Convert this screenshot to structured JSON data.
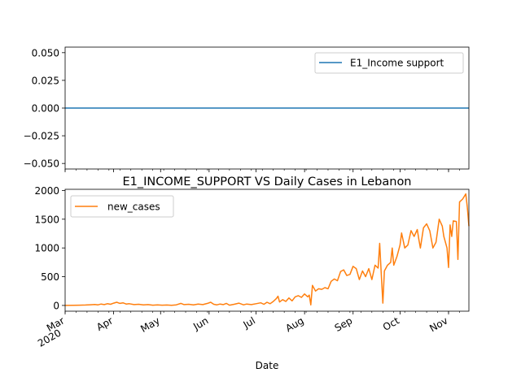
{
  "chart_data": [
    {
      "type": "line",
      "title": "",
      "xlabel": "",
      "ylabel": "",
      "ylim": [
        -0.055,
        0.055
      ],
      "yticks": [
        "0.050",
        "0.025",
        "0.000",
        "−0.025",
        "−0.050"
      ],
      "ytick_values": [
        0.05,
        0.025,
        0.0,
        -0.025,
        -0.05
      ],
      "legend_position": "top-right",
      "series": [
        {
          "name": "E1_Income support",
          "color": "#1f77b4",
          "x": [
            "2020-03-01",
            "2020-11-01"
          ],
          "values": [
            0,
            0
          ]
        }
      ]
    },
    {
      "type": "line",
      "title": "E1_INCOME_SUPPORT VS Daily Cases in Lebanon",
      "xlabel": "Date",
      "ylabel": "",
      "ylim": [
        -100,
        2020
      ],
      "yticks": [
        "0",
        "500",
        "1000",
        "1500",
        "2000"
      ],
      "ytick_values": [
        0,
        500,
        1000,
        1500,
        2000
      ],
      "xlim": [
        "2020-03-01",
        "2020-11-01"
      ],
      "xticks": [
        {
          "date": "2020-03-01",
          "label": "Mar",
          "sublabel": "2020"
        },
        {
          "date": "2020-04-01",
          "label": "Apr",
          "sublabel": ""
        },
        {
          "date": "2020-05-01",
          "label": "May",
          "sublabel": ""
        },
        {
          "date": "2020-06-01",
          "label": "Jun",
          "sublabel": ""
        },
        {
          "date": "2020-07-01",
          "label": "Jul",
          "sublabel": ""
        },
        {
          "date": "2020-08-01",
          "label": "Aug",
          "sublabel": ""
        },
        {
          "date": "2020-09-01",
          "label": "Sep",
          "sublabel": ""
        },
        {
          "date": "2020-10-01",
          "label": "Oct",
          "sublabel": ""
        },
        {
          "date": "2020-11-01",
          "label": "Nov",
          "sublabel": ""
        }
      ],
      "legend_position": "top-left",
      "series": [
        {
          "name": "new_cases",
          "color": "#ff7f0e",
          "points": [
            [
              "2020-03-01",
              0
            ],
            [
              "2020-03-06",
              2
            ],
            [
              "2020-03-10",
              5
            ],
            [
              "2020-03-14",
              8
            ],
            [
              "2020-03-17",
              12
            ],
            [
              "2020-03-20",
              18
            ],
            [
              "2020-03-22",
              10
            ],
            [
              "2020-03-24",
              25
            ],
            [
              "2020-03-26",
              15
            ],
            [
              "2020-03-28",
              30
            ],
            [
              "2020-03-30",
              20
            ],
            [
              "2020-04-01",
              40
            ],
            [
              "2020-04-03",
              55
            ],
            [
              "2020-04-05",
              35
            ],
            [
              "2020-04-07",
              45
            ],
            [
              "2020-04-09",
              25
            ],
            [
              "2020-04-11",
              30
            ],
            [
              "2020-04-14",
              15
            ],
            [
              "2020-04-17",
              20
            ],
            [
              "2020-04-20",
              10
            ],
            [
              "2020-04-23",
              15
            ],
            [
              "2020-04-26",
              5
            ],
            [
              "2020-04-29",
              10
            ],
            [
              "2020-05-02",
              5
            ],
            [
              "2020-05-05",
              8
            ],
            [
              "2020-05-08",
              3
            ],
            [
              "2020-05-11",
              10
            ],
            [
              "2020-05-14",
              35
            ],
            [
              "2020-05-16",
              15
            ],
            [
              "2020-05-19",
              20
            ],
            [
              "2020-05-22",
              10
            ],
            [
              "2020-05-25",
              25
            ],
            [
              "2020-05-28",
              15
            ],
            [
              "2020-05-31",
              35
            ],
            [
              "2020-06-02",
              55
            ],
            [
              "2020-06-04",
              20
            ],
            [
              "2020-06-06",
              10
            ],
            [
              "2020-06-08",
              25
            ],
            [
              "2020-06-10",
              15
            ],
            [
              "2020-06-12",
              35
            ],
            [
              "2020-06-14",
              5
            ],
            [
              "2020-06-17",
              20
            ],
            [
              "2020-06-20",
              40
            ],
            [
              "2020-06-23",
              10
            ],
            [
              "2020-06-25",
              25
            ],
            [
              "2020-06-28",
              15
            ],
            [
              "2020-07-01",
              30
            ],
            [
              "2020-07-04",
              45
            ],
            [
              "2020-07-06",
              20
            ],
            [
              "2020-07-08",
              55
            ],
            [
              "2020-07-10",
              30
            ],
            [
              "2020-07-12",
              70
            ],
            [
              "2020-07-14",
              120
            ],
            [
              "2020-07-15",
              160
            ],
            [
              "2020-07-16",
              60
            ],
            [
              "2020-07-18",
              100
            ],
            [
              "2020-07-20",
              70
            ],
            [
              "2020-07-22",
              130
            ],
            [
              "2020-07-24",
              80
            ],
            [
              "2020-07-26",
              150
            ],
            [
              "2020-07-28",
              170
            ],
            [
              "2020-07-30",
              140
            ],
            [
              "2020-08-01",
              200
            ],
            [
              "2020-08-03",
              150
            ],
            [
              "2020-08-04",
              180
            ],
            [
              "2020-08-05",
              10
            ],
            [
              "2020-08-06",
              350
            ],
            [
              "2020-08-08",
              250
            ],
            [
              "2020-08-10",
              290
            ],
            [
              "2020-08-12",
              280
            ],
            [
              "2020-08-14",
              310
            ],
            [
              "2020-08-16",
              290
            ],
            [
              "2020-08-18",
              420
            ],
            [
              "2020-08-20",
              460
            ],
            [
              "2020-08-22",
              430
            ],
            [
              "2020-08-24",
              590
            ],
            [
              "2020-08-26",
              620
            ],
            [
              "2020-08-28",
              520
            ],
            [
              "2020-08-30",
              540
            ],
            [
              "2020-09-01",
              680
            ],
            [
              "2020-09-03",
              640
            ],
            [
              "2020-09-05",
              450
            ],
            [
              "2020-09-07",
              600
            ],
            [
              "2020-09-09",
              500
            ],
            [
              "2020-09-11",
              640
            ],
            [
              "2020-09-13",
              450
            ],
            [
              "2020-09-15",
              700
            ],
            [
              "2020-09-17",
              650
            ],
            [
              "2020-09-18",
              1080
            ],
            [
              "2020-09-19",
              560
            ],
            [
              "2020-09-20",
              40
            ],
            [
              "2020-09-21",
              600
            ],
            [
              "2020-09-23",
              700
            ],
            [
              "2020-09-25",
              750
            ],
            [
              "2020-09-26",
              1000
            ],
            [
              "2020-09-27",
              700
            ],
            [
              "2020-09-29",
              850
            ],
            [
              "2020-10-01",
              1050
            ],
            [
              "2020-10-02",
              1260
            ],
            [
              "2020-10-04",
              1000
            ],
            [
              "2020-10-06",
              1050
            ],
            [
              "2020-10-08",
              1300
            ],
            [
              "2020-10-10",
              1200
            ],
            [
              "2020-10-12",
              1320
            ],
            [
              "2020-10-13",
              1150
            ],
            [
              "2020-10-14",
              1000
            ],
            [
              "2020-10-16",
              1350
            ],
            [
              "2020-10-18",
              1420
            ],
            [
              "2020-10-20",
              1300
            ],
            [
              "2020-10-22",
              1000
            ],
            [
              "2020-10-24",
              1100
            ],
            [
              "2020-10-26",
              1500
            ],
            [
              "2020-10-28",
              1380
            ],
            [
              "2020-10-29",
              1200
            ],
            [
              "2020-10-31",
              1000
            ],
            [
              "2020-11-01",
              660
            ],
            [
              "2020-11-02",
              1400
            ],
            [
              "2020-11-03",
              1200
            ],
            [
              "2020-11-04",
              1470
            ],
            [
              "2020-11-06",
              1460
            ],
            [
              "2020-11-07",
              800
            ],
            [
              "2020-11-08",
              1800
            ],
            [
              "2020-11-10",
              1850
            ],
            [
              "2020-11-12",
              1940
            ],
            [
              "2020-11-13",
              1700
            ],
            [
              "2020-11-14",
              1380
            ]
          ]
        }
      ]
    }
  ]
}
